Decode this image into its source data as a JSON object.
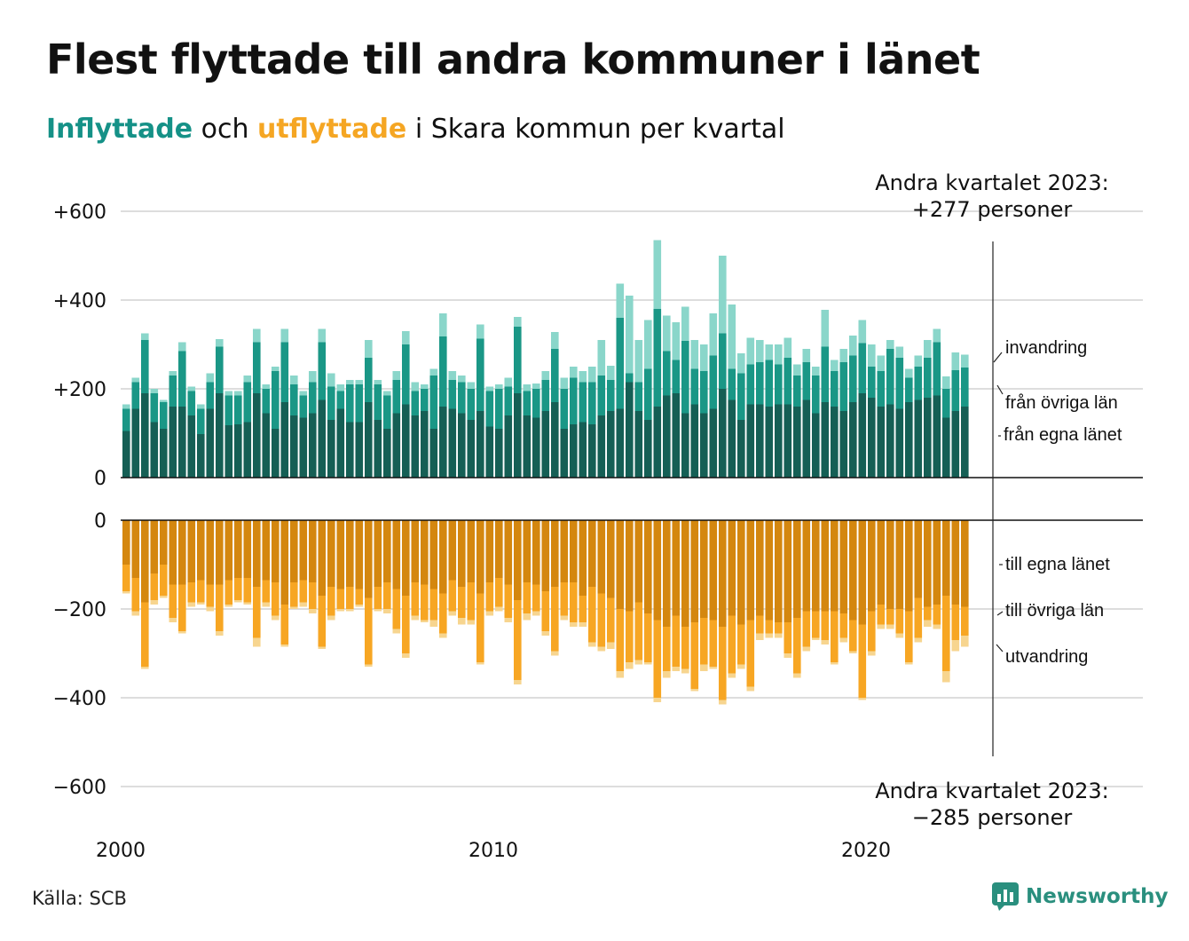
{
  "title": "Flest flyttade till andra kommuner i länet",
  "subtitle": {
    "in_word": "Inflyttade",
    "and": "och",
    "out_word": "utflyttade",
    "rest": "i Skara kommun per kvartal"
  },
  "source": "Källa: SCB",
  "brand": "Newsworthy",
  "colors": {
    "in_own": "#155f55",
    "in_other": "#1a9786",
    "in_imm": "#8ad6ca",
    "out_own": "#d4870f",
    "out_other": "#f7a623",
    "out_emig": "#f7d58f",
    "grid": "#dddddd",
    "brand": "#2a8f7e"
  },
  "annotations": {
    "top_line1": "Andra kvartalet 2023:",
    "top_line2": "+277 personer",
    "bottom_line1": "Andra kvartalet 2023:",
    "bottom_line2": "−285 personer"
  },
  "chart_data": {
    "type": "bar",
    "stacked": true,
    "x_start": "2000-Q1",
    "x_end": "2023-Q2",
    "x_ticks": [
      "2000",
      "2010",
      "2020"
    ],
    "y_top_ticks": [
      "+600",
      "+400",
      "+200",
      "0"
    ],
    "y_bottom_ticks": [
      "0",
      "−200",
      "−400",
      "−600"
    ],
    "ylim_top": [
      0,
      600
    ],
    "ylim_bottom": [
      -600,
      0
    ],
    "grid": true,
    "in_series_labels": [
      "från egna länet",
      "från övriga län",
      "invandring"
    ],
    "out_series_labels": [
      "till egna länet",
      "till övriga län",
      "utvandring"
    ],
    "in_totals": [
      165,
      225,
      325,
      200,
      175,
      240,
      305,
      205,
      165,
      235,
      312,
      195,
      195,
      230,
      335,
      210,
      250,
      335,
      230,
      195,
      240,
      335,
      235,
      210,
      220,
      220,
      310,
      220,
      195,
      240,
      330,
      215,
      210,
      245,
      370,
      240,
      230,
      215,
      345,
      205,
      210,
      225,
      362,
      210,
      212,
      240,
      328,
      225,
      250,
      240,
      250,
      310,
      252,
      437,
      410,
      310,
      355,
      535,
      365,
      350,
      385,
      310,
      300,
      370,
      500,
      390,
      280,
      315,
      310,
      300,
      300,
      315,
      255,
      290,
      250,
      378,
      265,
      290,
      320,
      355,
      300,
      275,
      310,
      295,
      245,
      275,
      310,
      335,
      228,
      282,
      277
    ],
    "in_other_top": [
      155,
      215,
      310,
      190,
      170,
      230,
      285,
      195,
      155,
      215,
      295,
      185,
      185,
      215,
      305,
      200,
      240,
      305,
      210,
      185,
      215,
      305,
      205,
      195,
      210,
      210,
      270,
      210,
      185,
      220,
      300,
      195,
      200,
      230,
      318,
      220,
      215,
      200,
      313,
      195,
      200,
      205,
      340,
      195,
      200,
      220,
      290,
      200,
      225,
      215,
      215,
      230,
      220,
      360,
      235,
      215,
      245,
      380,
      285,
      265,
      308,
      245,
      240,
      275,
      325,
      245,
      235,
      255,
      260,
      265,
      255,
      270,
      230,
      260,
      230,
      295,
      240,
      260,
      275,
      303,
      250,
      240,
      290,
      270,
      225,
      250,
      270,
      305,
      200,
      242,
      248
    ],
    "in_own_top": [
      105,
      155,
      190,
      125,
      110,
      160,
      160,
      140,
      98,
      155,
      190,
      118,
      120,
      125,
      190,
      145,
      110,
      170,
      140,
      135,
      145,
      175,
      130,
      155,
      125,
      125,
      170,
      130,
      110,
      145,
      165,
      140,
      150,
      110,
      160,
      155,
      145,
      130,
      150,
      115,
      110,
      140,
      190,
      140,
      135,
      150,
      170,
      110,
      120,
      125,
      120,
      140,
      150,
      155,
      215,
      150,
      130,
      160,
      185,
      190,
      145,
      165,
      145,
      155,
      200,
      175,
      130,
      165,
      165,
      160,
      165,
      165,
      160,
      175,
      145,
      170,
      160,
      150,
      170,
      190,
      180,
      160,
      165,
      155,
      170,
      175,
      180,
      185,
      135,
      150,
      160
    ],
    "out_totals": [
      -165,
      -215,
      -335,
      -190,
      -175,
      -230,
      -255,
      -195,
      -190,
      -205,
      -260,
      -195,
      -185,
      -190,
      -285,
      -195,
      -225,
      -285,
      -200,
      -195,
      -210,
      -290,
      -225,
      -205,
      -205,
      -195,
      -330,
      -205,
      -210,
      -255,
      -310,
      -225,
      -230,
      -240,
      -265,
      -215,
      -235,
      -235,
      -325,
      -215,
      -205,
      -230,
      -370,
      -225,
      -215,
      -260,
      -305,
      -225,
      -240,
      -240,
      -285,
      -295,
      -290,
      -355,
      -335,
      -325,
      -325,
      -410,
      -355,
      -340,
      -345,
      -385,
      -340,
      -335,
      -415,
      -355,
      -335,
      -385,
      -270,
      -265,
      -265,
      -310,
      -355,
      -295,
      -270,
      -280,
      -325,
      -275,
      -300,
      -405,
      -305,
      -245,
      -245,
      -265,
      -325,
      -275,
      -240,
      -245,
      -365,
      -295,
      -285
    ],
    "out_other_bottom": [
      -160,
      -205,
      -330,
      -180,
      -170,
      -220,
      -250,
      -185,
      -185,
      -195,
      -250,
      -190,
      -180,
      -185,
      -265,
      -185,
      -215,
      -280,
      -195,
      -185,
      -200,
      -285,
      -215,
      -200,
      -200,
      -190,
      -325,
      -200,
      -200,
      -245,
      -300,
      -215,
      -225,
      -225,
      -255,
      -205,
      -220,
      -225,
      -320,
      -205,
      -195,
      -220,
      -360,
      -210,
      -205,
      -250,
      -295,
      -215,
      -230,
      -230,
      -275,
      -285,
      -275,
      -340,
      -320,
      -315,
      -320,
      -400,
      -340,
      -330,
      -335,
      -380,
      -325,
      -330,
      -405,
      -345,
      -325,
      -375,
      -255,
      -255,
      -255,
      -300,
      -345,
      -285,
      -265,
      -270,
      -320,
      -265,
      -295,
      -400,
      -295,
      -235,
      -235,
      -255,
      -320,
      -265,
      -225,
      -235,
      -340,
      -270,
      -260
    ],
    "out_own_bottom": [
      -100,
      -130,
      -185,
      -120,
      -100,
      -145,
      -145,
      -140,
      -135,
      -145,
      -145,
      -135,
      -130,
      -130,
      -150,
      -135,
      -140,
      -190,
      -140,
      -135,
      -140,
      -170,
      -150,
      -155,
      -150,
      -155,
      -175,
      -150,
      -140,
      -155,
      -170,
      -140,
      -145,
      -155,
      -165,
      -135,
      -150,
      -140,
      -165,
      -140,
      -130,
      -145,
      -180,
      -140,
      -145,
      -160,
      -150,
      -140,
      -140,
      -170,
      -150,
      -165,
      -175,
      -200,
      -205,
      -185,
      -210,
      -225,
      -240,
      -215,
      -240,
      -230,
      -220,
      -225,
      -240,
      -215,
      -235,
      -225,
      -215,
      -225,
      -230,
      -230,
      -220,
      -205,
      -205,
      -205,
      -205,
      -210,
      -225,
      -235,
      -205,
      -190,
      -200,
      -200,
      -205,
      -175,
      -195,
      -190,
      -170,
      -190,
      -195
    ]
  }
}
